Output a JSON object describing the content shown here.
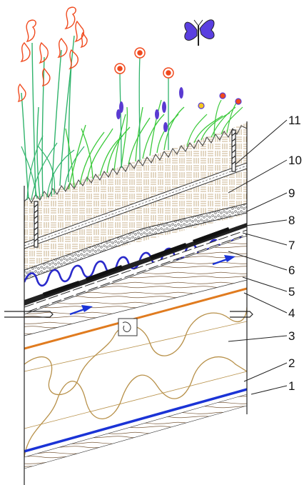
{
  "diagram": {
    "layer_labels": [
      "1",
      "2",
      "3",
      "4",
      "5",
      "6",
      "7",
      "8",
      "9",
      "10",
      "11"
    ]
  },
  "colors": {
    "insulation_outline": "#b8914a",
    "membrane_blue": "#1a33d6",
    "drainage_wave": "#2a2acb",
    "orange_line": "#e07b1f",
    "flower_red": "#f04a1e",
    "stem_green": "#2fb36b",
    "grass_green": "#3ac93a",
    "flower_purple": "#5a3ad1",
    "butterfly": "#5a3fe0",
    "substrate_hatch": "#b89968",
    "wood_grain": "#7a5a3a"
  },
  "icons": [
    "butterfly-icon",
    "flower-icon",
    "anchor-bolt-icon",
    "flow-arrow-icon"
  ]
}
